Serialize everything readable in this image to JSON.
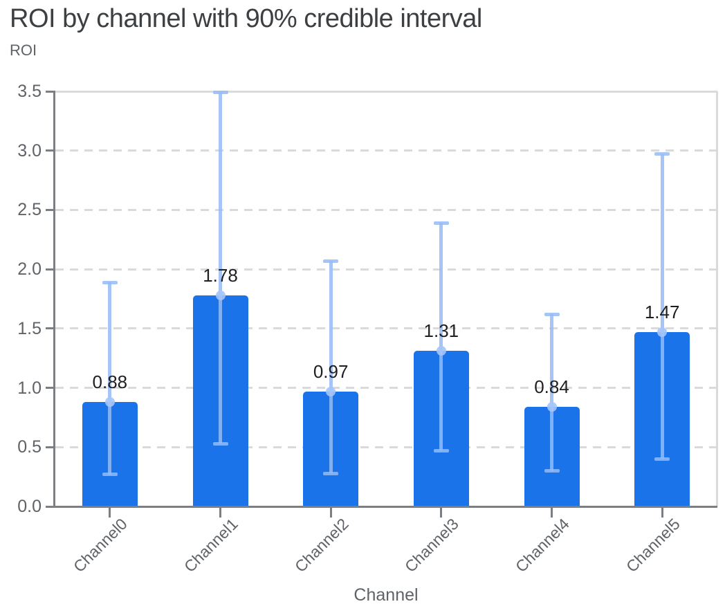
{
  "header": {
    "title": "ROI by channel with 90% credible interval"
  },
  "chart_data": {
    "type": "bar",
    "title": "ROI by channel with 90% credible interval",
    "xlabel": "Channel",
    "ylabel": "ROI",
    "ylim": [
      0,
      3.5
    ],
    "ytick_labels": [
      "0.0",
      "0.5",
      "1.0",
      "1.5",
      "2.0",
      "2.5",
      "3.0",
      "3.5"
    ],
    "grid": true,
    "legend": "none",
    "categories": [
      "Channel0",
      "Channel1",
      "Channel2",
      "Channel3",
      "Channel4",
      "Channel5"
    ],
    "values": [
      0.88,
      1.78,
      0.97,
      1.31,
      0.84,
      1.47
    ],
    "value_labels": [
      "0.88",
      "1.78",
      "0.97",
      "1.31",
      "0.84",
      "1.47"
    ],
    "error_bars": {
      "level": "90% credible interval",
      "lower": [
        0.27,
        0.53,
        0.28,
        0.47,
        0.3,
        0.4
      ],
      "upper": [
        1.89,
        3.49,
        2.07,
        2.39,
        1.62,
        2.97
      ]
    },
    "colors": {
      "bar": "#1a73e8",
      "error_bar": "rgba(149,187,246,0.85)",
      "marker": "rgba(164,197,250,0.9)",
      "gridline": "#d8dadc",
      "axis": "#7b7e83",
      "tick_label": "#5f6368",
      "value_label": "#1d1f22",
      "title": "#3c4043"
    }
  }
}
